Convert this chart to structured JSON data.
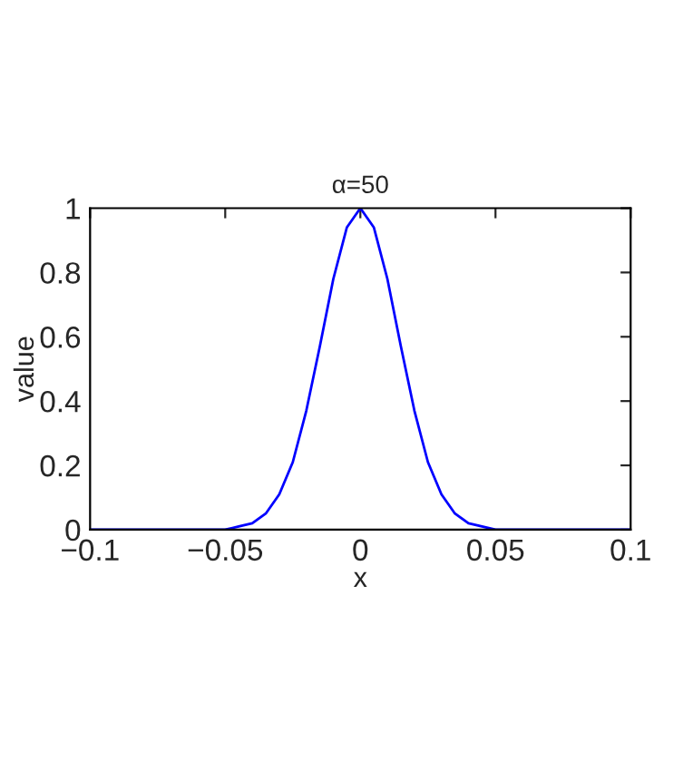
{
  "chart_data": {
    "type": "line",
    "title": "α=50",
    "xlabel": "x",
    "ylabel": "value",
    "series": [
      {
        "color": "#0000ff",
        "x": [
          -0.1,
          -0.06,
          -0.05,
          -0.045,
          -0.04,
          -0.035,
          -0.03,
          -0.025,
          -0.02,
          -0.015,
          -0.01,
          -0.005,
          0,
          0.005,
          0.01,
          0.015,
          0.02,
          0.025,
          0.03,
          0.035,
          0.04,
          0.045,
          0.05,
          0.06,
          0.1
        ],
        "values": [
          0,
          0,
          0,
          0.01,
          0.02,
          0.05,
          0.11,
          0.21,
          0.37,
          0.57,
          0.78,
          0.94,
          1,
          0.94,
          0.78,
          0.57,
          0.37,
          0.21,
          0.11,
          0.05,
          0.02,
          0.01,
          0,
          0,
          0
        ]
      }
    ],
    "xlim": [
      -0.1,
      0.1
    ],
    "ylim": [
      0,
      1
    ],
    "xticks": [
      {
        "value": -0.1,
        "label": "−0.1"
      },
      {
        "value": -0.05,
        "label": "−0.05"
      },
      0,
      0.05,
      0.1
    ],
    "yticks": [
      0,
      0.2,
      0.4,
      0.6,
      0.8,
      1
    ],
    "grid": false,
    "legend": false,
    "marker": "none",
    "line_style": "solid"
  }
}
